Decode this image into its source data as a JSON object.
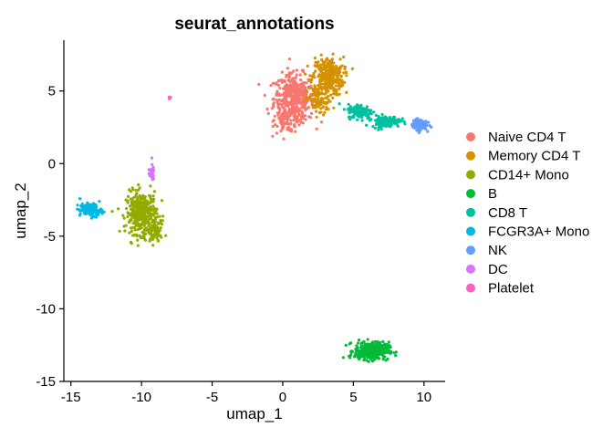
{
  "chart_data": {
    "type": "scatter",
    "title": "seurat_annotations",
    "xlabel": "umap_1",
    "ylabel": "umap_2",
    "xlim": [
      -15.5,
      11.5
    ],
    "ylim": [
      -15,
      8.5
    ],
    "x_ticks": [
      -15,
      -10,
      -5,
      0,
      5,
      10
    ],
    "y_ticks": [
      -15,
      -10,
      -5,
      0,
      5
    ],
    "grid": false,
    "legend_position": "right",
    "series": [
      {
        "name": "Naive CD4 T",
        "color": "#F8766D",
        "clusters": [
          {
            "center": [
              0.8,
              4.5
            ],
            "spread": [
              1.3,
              1.5
            ],
            "count": 420
          },
          {
            "center": [
              0.4,
              3.0
            ],
            "spread": [
              0.9,
              0.8
            ],
            "count": 80
          }
        ]
      },
      {
        "name": "Memory CD4 T",
        "color": "#D39200",
        "clusters": [
          {
            "center": [
              3.2,
              6.0
            ],
            "spread": [
              1.0,
              1.2
            ],
            "count": 320
          },
          {
            "center": [
              2.6,
              4.3
            ],
            "spread": [
              0.8,
              0.9
            ],
            "count": 90
          }
        ]
      },
      {
        "name": "CD14+ Mono",
        "color": "#93AA00",
        "clusters": [
          {
            "center": [
              -10.0,
              -3.4
            ],
            "spread": [
              1.0,
              1.3
            ],
            "count": 360
          },
          {
            "center": [
              -9.1,
              -4.8
            ],
            "spread": [
              0.5,
              0.7
            ],
            "count": 70
          }
        ]
      },
      {
        "name": "B",
        "color": "#00BA38",
        "clusters": [
          {
            "center": [
              6.3,
              -12.9
            ],
            "spread": [
              1.1,
              0.55
            ],
            "count": 340
          }
        ]
      },
      {
        "name": "CD8 T",
        "color": "#00C19F",
        "clusters": [
          {
            "center": [
              5.5,
              3.6
            ],
            "spread": [
              0.8,
              0.45
            ],
            "count": 150
          },
          {
            "center": [
              7.3,
              2.9
            ],
            "spread": [
              0.9,
              0.35
            ],
            "count": 150
          }
        ]
      },
      {
        "name": "FCGR3A+ Mono",
        "color": "#00B9E3",
        "clusters": [
          {
            "center": [
              -13.6,
              -3.2
            ],
            "spread": [
              0.7,
              0.4
            ],
            "count": 150
          }
        ]
      },
      {
        "name": "NK",
        "color": "#619CFF",
        "clusters": [
          {
            "center": [
              9.7,
              2.7
            ],
            "spread": [
              0.45,
              0.35
            ],
            "count": 140
          }
        ]
      },
      {
        "name": "DC",
        "color": "#DB72FB",
        "clusters": [
          {
            "center": [
              -9.3,
              -0.6
            ],
            "spread": [
              0.18,
              0.5
            ],
            "count": 30
          }
        ]
      },
      {
        "name": "Platelet",
        "color": "#FF61C3",
        "clusters": [
          {
            "center": [
              -8.0,
              4.5
            ],
            "spread": [
              0.08,
              0.08
            ],
            "count": 6
          }
        ]
      }
    ]
  }
}
